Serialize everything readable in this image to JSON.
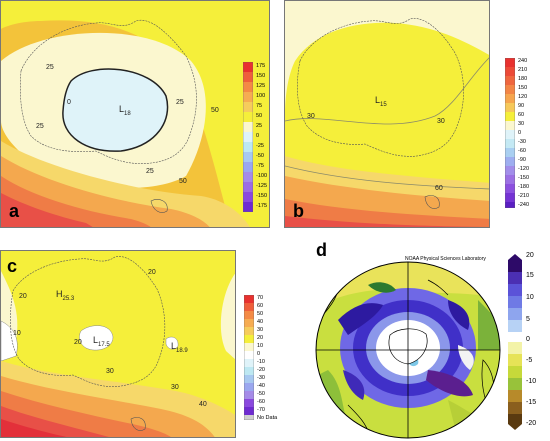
{
  "panels": {
    "a": {
      "letter": "a",
      "low": {
        "letter": "L",
        "value": "18"
      },
      "contour_labels": [
        "25",
        "0",
        "25",
        "25",
        "50",
        "25",
        "50"
      ],
      "legend": [
        "175",
        "150",
        "125",
        "100",
        "75",
        "50",
        "25",
        "0",
        "-25",
        "-50",
        "-75",
        "-100",
        "-125",
        "-150",
        "-175"
      ]
    },
    "b": {
      "letter": "b",
      "low": {
        "letter": "L",
        "value": "15"
      },
      "contour_labels": [
        "30",
        "30",
        "60"
      ],
      "legend": [
        "240",
        "210",
        "180",
        "150",
        "120",
        "90",
        "60",
        "30",
        "0",
        "-30",
        "-60",
        "-90",
        "-120",
        "-150",
        "-180",
        "-210",
        "-240"
      ]
    },
    "c": {
      "letter": "c",
      "high": {
        "letter": "H",
        "value": "25.3"
      },
      "low1": {
        "letter": "L",
        "value": "17.5"
      },
      "low2": {
        "letter": "L",
        "value": "18.9"
      },
      "contour_labels": [
        "20",
        "20",
        "10",
        "20",
        "30",
        "30",
        "40"
      ],
      "legend": [
        "70",
        "60",
        "50",
        "40",
        "30",
        "20",
        "10",
        "0",
        "-10",
        "-20",
        "-30",
        "-40",
        "-50",
        "-60",
        "-70"
      ],
      "legend_nodata": "No Data"
    },
    "d": {
      "letter": "d",
      "title": "NOAA Physical Sciences Laboratory",
      "colorbar": [
        "20",
        "15",
        "10",
        "5",
        "0",
        "-5",
        "-10",
        "-15",
        "-20"
      ]
    }
  },
  "colors": {
    "ocean_warm": "#f03030",
    "yellow": "#f5ef3a",
    "cream": "#fbf7cf",
    "light_blue": "#dff3f9"
  }
}
